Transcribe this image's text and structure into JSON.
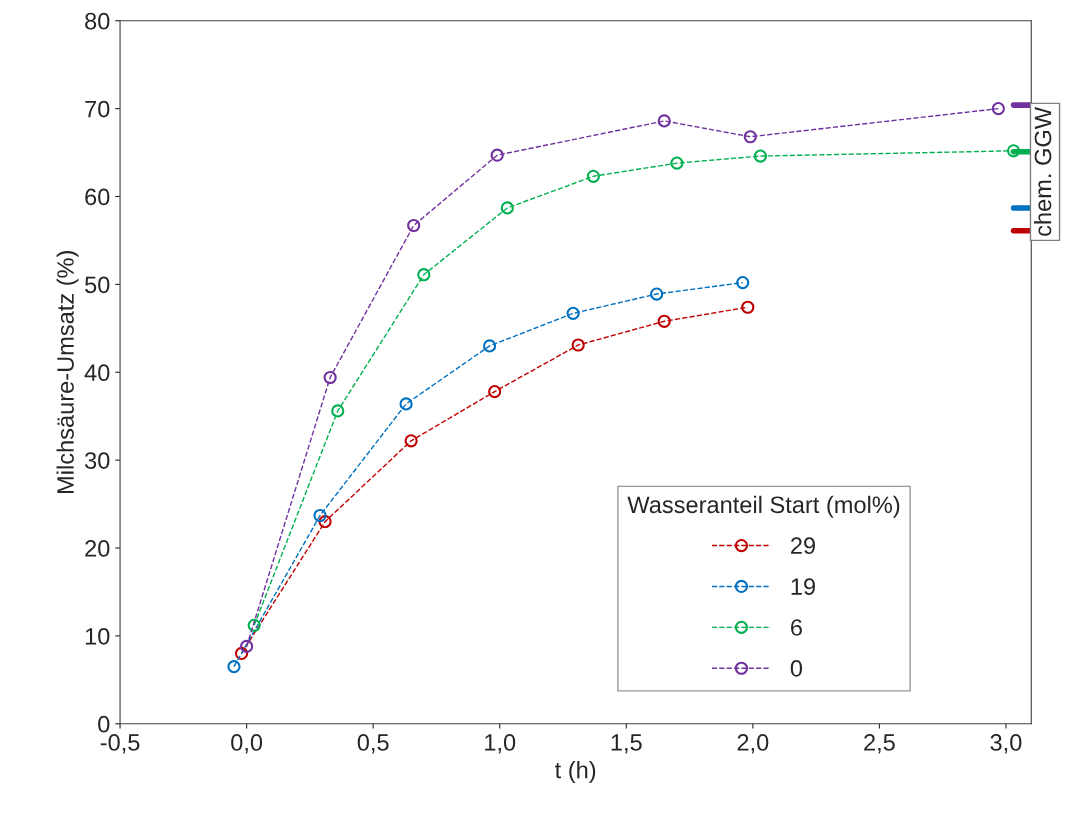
{
  "chart_data": {
    "type": "line",
    "xlabel": "t (h)",
    "ylabel": "Milchsäure-Umsatz (%)",
    "legend_title": "Wasseranteil Start (mol%)",
    "xlim": [
      -0.5,
      3.1
    ],
    "xticks": [
      {
        "value": -0.5,
        "label": "-0,5"
      },
      {
        "value": 0,
        "label": "0,0"
      },
      {
        "value": 0.5,
        "label": "0,5"
      },
      {
        "value": 1,
        "label": "1,0"
      },
      {
        "value": 1.5,
        "label": "1,5"
      },
      {
        "value": 2,
        "label": "2,0"
      },
      {
        "value": 2.5,
        "label": "2,5"
      },
      {
        "value": 3,
        "label": "3,0"
      }
    ],
    "ylim": [
      0,
      80
    ],
    "yticks": [
      0,
      10,
      20,
      30,
      40,
      50,
      60,
      70,
      80
    ],
    "grid": false,
    "legend": "bottom right",
    "marker": "circle",
    "line_style": "dashed",
    "series": [
      {
        "name": "29",
        "color": "#c00000",
        "x": [
          -0.02,
          0.31,
          0.65,
          0.98,
          1.31,
          1.65,
          1.98
        ],
        "values": [
          8.0,
          23.0,
          32.2,
          37.8,
          43.1,
          45.8,
          47.4
        ]
      },
      {
        "name": "19",
        "color": "#0070c0",
        "x": [
          -0.05,
          0.29,
          0.63,
          0.96,
          1.29,
          1.62,
          1.96
        ],
        "values": [
          6.5,
          23.7,
          36.4,
          43.0,
          46.7,
          48.9,
          50.2
        ]
      },
      {
        "name": "6",
        "color": "#00b050",
        "x": [
          0.03,
          0.36,
          0.7,
          1.03,
          1.37,
          1.7,
          2.03,
          3.03
        ],
        "values": [
          11.2,
          35.6,
          51.1,
          58.7,
          62.3,
          63.8,
          64.6,
          65.2
        ]
      },
      {
        "name": "0",
        "color": "#7030a0",
        "x": [
          0.0,
          0.33,
          0.66,
          0.99,
          1.65,
          1.99,
          2.97
        ],
        "values": [
          8.8,
          39.4,
          56.7,
          64.7,
          68.6,
          66.8,
          70.0
        ]
      },
      {
        "color": "#7030a0",
        "x": [
          3.03,
          3.1
        ],
        "values": [
          70.4,
          70.4
        ],
        "marker": "none",
        "line_style": "solid"
      },
      {
        "color": "#00b050",
        "x": [
          3.03,
          3.1
        ],
        "values": [
          65.1,
          65.1
        ],
        "marker": "none",
        "line_style": "solid"
      },
      {
        "color": "#0070c0",
        "x": [
          3.03,
          3.1
        ],
        "values": [
          58.7,
          58.7
        ],
        "marker": "none",
        "line_style": "solid"
      },
      {
        "color": "#c00000",
        "x": [
          3.03,
          3.1
        ],
        "values": [
          56.1,
          56.1
        ],
        "marker": "none",
        "line_style": "solid"
      }
    ],
    "annotations": [
      "chem. GGW"
    ]
  }
}
